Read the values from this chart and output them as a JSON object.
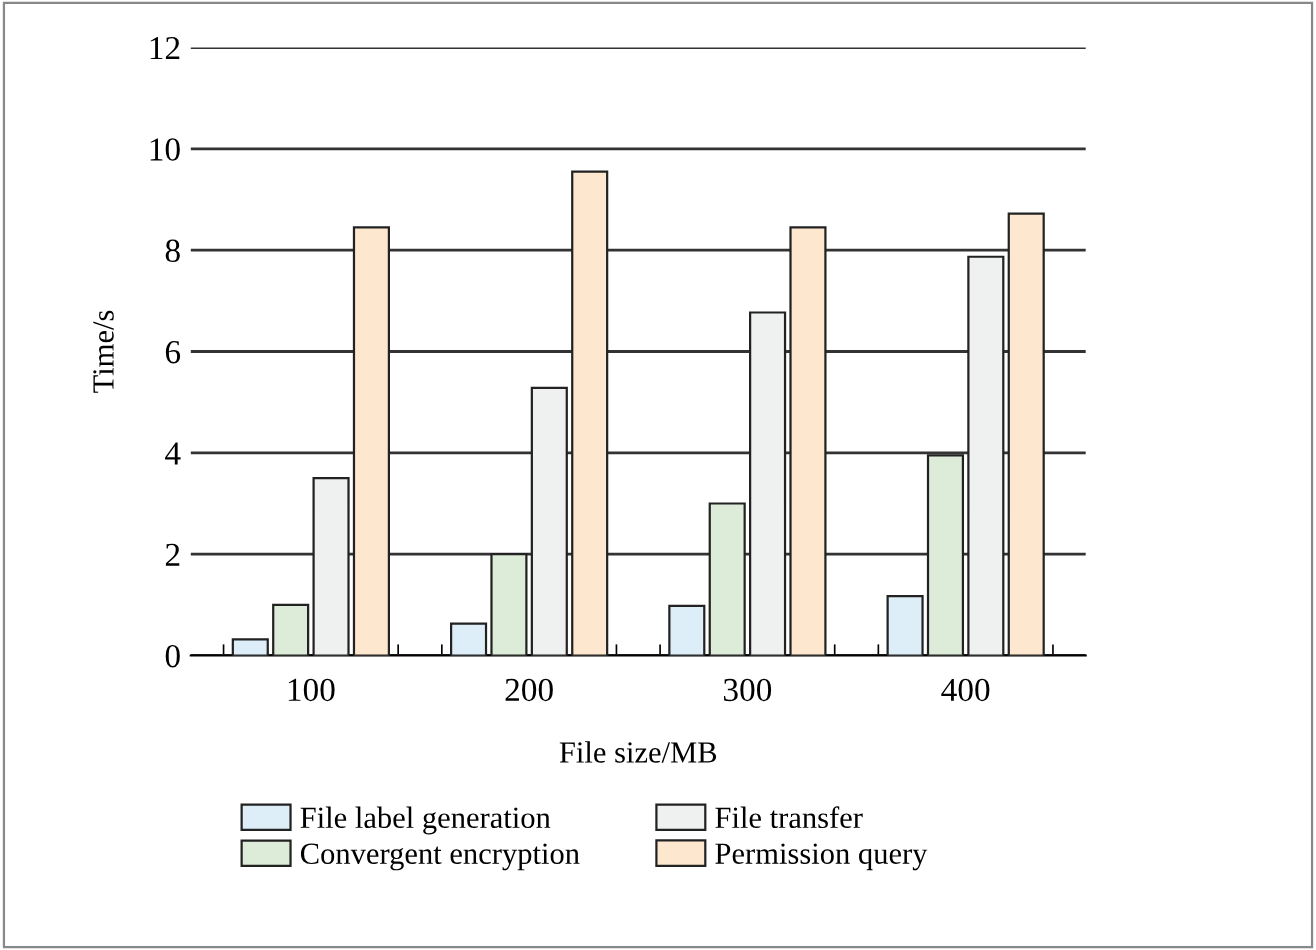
{
  "chart_data": {
    "type": "bar",
    "xlabel": "File size/MB",
    "ylabel": "Time/s",
    "categories": [
      "100",
      "200",
      "300",
      "400"
    ],
    "series": [
      {
        "name": "File label generation",
        "color": "#ddeef8",
        "values": [
          0.32,
          0.63,
          0.98,
          1.17
        ]
      },
      {
        "name": "Convergent encryption",
        "color": "#ddebd9",
        "values": [
          1.0,
          2.0,
          3.0,
          3.95
        ]
      },
      {
        "name": "File transfer",
        "color": "#eff1f0",
        "values": [
          3.5,
          5.28,
          6.77,
          7.87
        ]
      },
      {
        "name": "Permission query",
        "color": "#fde8cf",
        "values": [
          8.45,
          9.55,
          8.45,
          8.72
        ]
      }
    ],
    "ylim": [
      0,
      12
    ],
    "yticks": [
      0,
      2,
      4,
      6,
      8,
      10,
      12
    ],
    "grid": "y",
    "legend": "bottom"
  }
}
